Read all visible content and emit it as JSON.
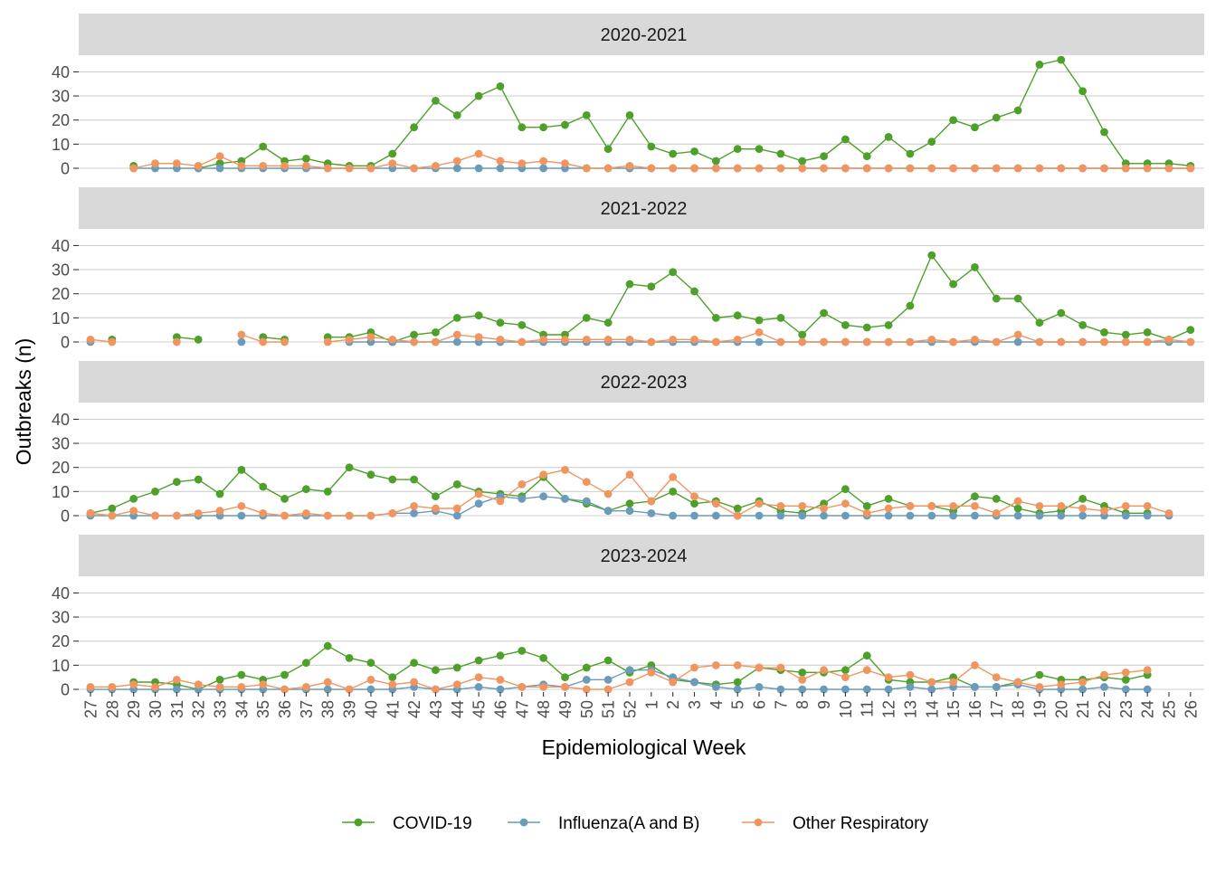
{
  "chart_data": {
    "type": "line",
    "xlabel": "Epidemiological Week",
    "ylabel": "Outbreaks (n)",
    "ylim": [
      0,
      45
    ],
    "yticks": [
      0,
      10,
      20,
      30,
      40
    ],
    "grid": true,
    "legend_position": "bottom",
    "categories": [
      "27",
      "28",
      "29",
      "30",
      "31",
      "32",
      "33",
      "34",
      "35",
      "36",
      "37",
      "38",
      "39",
      "40",
      "41",
      "42",
      "43",
      "44",
      "45",
      "46",
      "47",
      "48",
      "49",
      "50",
      "51",
      "52",
      "1",
      "2",
      "3",
      "4",
      "5",
      "6",
      "7",
      "8",
      "9",
      "10",
      "11",
      "12",
      "13",
      "14",
      "15",
      "16",
      "17",
      "18",
      "19",
      "20",
      "21",
      "22",
      "23",
      "24",
      "25",
      "26"
    ],
    "series_styles": [
      {
        "name": "COVID-19",
        "color": "#4da02a"
      },
      {
        "name": "Influenza(A and B)",
        "color": "#6a9bb9"
      },
      {
        "name": "Other Respiratory",
        "color": "#f0955f"
      }
    ],
    "panels": [
      {
        "title": "2020-2021",
        "series": [
          {
            "name": "COVID-19",
            "values": [
              null,
              null,
              1,
              null,
              null,
              0,
              2,
              3,
              9,
              3,
              4,
              2,
              1,
              1,
              6,
              17,
              28,
              22,
              30,
              34,
              17,
              17,
              18,
              22,
              8,
              22,
              9,
              6,
              7,
              3,
              8,
              8,
              6,
              3,
              5,
              12,
              5,
              13,
              6,
              11,
              20,
              17,
              21,
              24,
              43,
              45,
              32,
              15,
              2,
              2,
              2,
              1
            ]
          },
          {
            "name": "Influenza(A and B)",
            "values": [
              null,
              null,
              0,
              0,
              0,
              0,
              0,
              0,
              0,
              0,
              0,
              0,
              0,
              0,
              0,
              0,
              0,
              0,
              0,
              0,
              0,
              0,
              0,
              0,
              0,
              0,
              0,
              0,
              0,
              0,
              0,
              0,
              0,
              0,
              0,
              0,
              0,
              0,
              0,
              0,
              0,
              0,
              0,
              0,
              0,
              0,
              0,
              0,
              0,
              0,
              0,
              0
            ]
          },
          {
            "name": "Other Respiratory",
            "values": [
              null,
              null,
              0,
              2,
              2,
              1,
              5,
              1,
              1,
              1,
              1,
              0,
              0,
              0,
              2,
              0,
              1,
              3,
              6,
              3,
              2,
              3,
              2,
              0,
              0,
              1,
              0,
              0,
              0,
              0,
              0,
              0,
              0,
              0,
              0,
              0,
              0,
              0,
              0,
              0,
              0,
              0,
              0,
              0,
              0,
              0,
              0,
              0,
              0,
              0,
              0,
              0
            ]
          }
        ]
      },
      {
        "title": "2021-2022",
        "series": [
          {
            "name": "COVID-19",
            "values": [
              null,
              1,
              null,
              null,
              2,
              1,
              null,
              null,
              2,
              1,
              null,
              2,
              2,
              4,
              0,
              3,
              4,
              10,
              11,
              8,
              7,
              3,
              3,
              10,
              8,
              24,
              23,
              29,
              21,
              10,
              11,
              9,
              10,
              3,
              12,
              7,
              6,
              7,
              15,
              36,
              24,
              31,
              18,
              18,
              8,
              12,
              7,
              4,
              3,
              4,
              1,
              5
            ]
          },
          {
            "name": "Influenza(A and B)",
            "values": [
              0,
              null,
              null,
              null,
              null,
              null,
              null,
              0,
              null,
              null,
              null,
              null,
              0,
              0,
              0,
              0,
              0,
              0,
              0,
              0,
              0,
              0,
              0,
              0,
              0,
              0,
              0,
              0,
              0,
              0,
              0,
              0,
              0,
              0,
              0,
              0,
              0,
              0,
              0,
              0,
              0,
              0,
              0,
              0,
              0,
              0,
              0,
              0,
              0,
              0,
              0,
              0
            ]
          },
          {
            "name": "Other Respiratory",
            "values": [
              1,
              0,
              null,
              null,
              0,
              null,
              null,
              3,
              0,
              0,
              null,
              0,
              1,
              2,
              1,
              0,
              0,
              3,
              2,
              1,
              0,
              1,
              1,
              1,
              1,
              1,
              0,
              1,
              1,
              0,
              1,
              4,
              0,
              0,
              0,
              0,
              0,
              0,
              0,
              1,
              0,
              1,
              0,
              3,
              0,
              0,
              0,
              0,
              0,
              0,
              1,
              0
            ]
          }
        ]
      },
      {
        "title": "2022-2023",
        "series": [
          {
            "name": "COVID-19",
            "values": [
              1,
              3,
              7,
              10,
              14,
              15,
              9,
              19,
              12,
              7,
              11,
              10,
              20,
              17,
              15,
              15,
              8,
              13,
              10,
              9,
              8,
              16,
              7,
              5,
              2,
              5,
              6,
              10,
              5,
              6,
              3,
              6,
              2,
              1,
              5,
              11,
              4,
              7,
              4,
              4,
              2,
              8,
              7,
              3,
              1,
              2,
              7,
              4,
              1,
              1,
              null,
              null
            ]
          },
          {
            "name": "Influenza(A and B)",
            "values": [
              0,
              0,
              0,
              0,
              0,
              0,
              0,
              0,
              0,
              0,
              0,
              0,
              0,
              0,
              1,
              1,
              2,
              0,
              5,
              8,
              7,
              8,
              7,
              6,
              2,
              2,
              1,
              0,
              0,
              0,
              0,
              0,
              0,
              0,
              0,
              0,
              0,
              0,
              0,
              0,
              0,
              0,
              0,
              0,
              0,
              0,
              0,
              0,
              0,
              0,
              0,
              null
            ]
          },
          {
            "name": "Other Respiratory",
            "values": [
              1,
              0,
              2,
              0,
              0,
              1,
              2,
              4,
              1,
              0,
              1,
              0,
              0,
              0,
              1,
              4,
              3,
              3,
              9,
              6,
              13,
              17,
              19,
              14,
              9,
              17,
              6,
              16,
              8,
              5,
              0,
              5,
              4,
              4,
              3,
              5,
              1,
              3,
              4,
              4,
              4,
              4,
              1,
              6,
              4,
              4,
              3,
              2,
              4,
              4,
              1,
              null
            ]
          }
        ]
      },
      {
        "title": "2023-2024",
        "series": [
          {
            "name": "COVID-19",
            "values": [
              null,
              null,
              3,
              3,
              2,
              0,
              4,
              6,
              4,
              6,
              11,
              18,
              13,
              11,
              5,
              11,
              8,
              9,
              12,
              14,
              16,
              13,
              5,
              9,
              12,
              7,
              10,
              4,
              3,
              2,
              3,
              9,
              8,
              7,
              7,
              8,
              14,
              4,
              3,
              3,
              5,
              1,
              1,
              3,
              6,
              4,
              4,
              5,
              4,
              6,
              null,
              null
            ]
          },
          {
            "name": "Influenza(A and B)",
            "values": [
              0,
              0,
              0,
              0,
              0,
              0,
              0,
              0,
              0,
              0,
              0,
              0,
              0,
              0,
              0,
              1,
              0,
              0,
              1,
              0,
              1,
              2,
              1,
              4,
              4,
              8,
              8,
              5,
              3,
              1,
              0,
              1,
              0,
              0,
              0,
              0,
              0,
              0,
              1,
              0,
              1,
              1,
              1,
              2,
              0,
              0,
              0,
              1,
              0,
              0,
              null,
              null
            ]
          },
          {
            "name": "Other Respiratory",
            "values": [
              1,
              1,
              2,
              1,
              4,
              2,
              1,
              1,
              2,
              0,
              1,
              3,
              0,
              4,
              2,
              3,
              0,
              2,
              5,
              4,
              1,
              1,
              1,
              0,
              0,
              3,
              7,
              3,
              9,
              10,
              10,
              9,
              9,
              4,
              8,
              5,
              8,
              5,
              6,
              3,
              3,
              10,
              5,
              3,
              1,
              2,
              3,
              6,
              7,
              8,
              null,
              null
            ]
          }
        ]
      }
    ]
  }
}
